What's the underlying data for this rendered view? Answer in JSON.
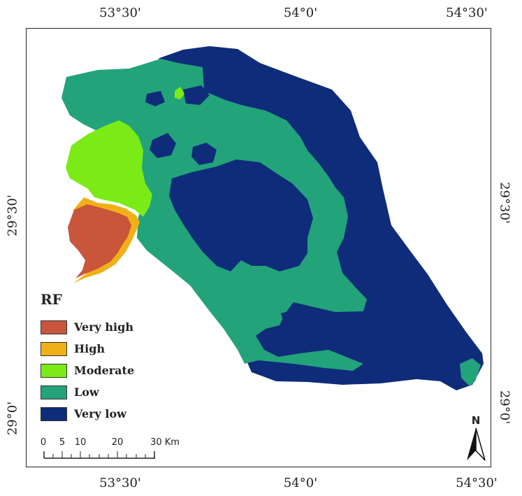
{
  "legend": {
    "title": "RF",
    "items": [
      {
        "label": "Very high",
        "color": "#c9553a"
      },
      {
        "label": "High",
        "color": "#f0b018"
      },
      {
        "label": "Moderate",
        "color": "#7aeb16"
      },
      {
        "label": "Low",
        "color": "#23a37a"
      },
      {
        "label": "Very low",
        "color": "#0e2c7a"
      }
    ]
  },
  "coordinates": {
    "top": [
      "53°30'",
      "54°0'",
      "54°30'"
    ],
    "bottom": [
      "53°30'",
      "54°0'",
      "54°30'"
    ],
    "left": [
      "29°30'",
      "29°0'"
    ],
    "right": [
      "29°30'",
      "29°0'"
    ]
  },
  "scale_bar": {
    "labels": [
      "0",
      "5",
      "10",
      "20",
      "30 Km"
    ]
  },
  "north_arrow": {
    "label": "N"
  }
}
